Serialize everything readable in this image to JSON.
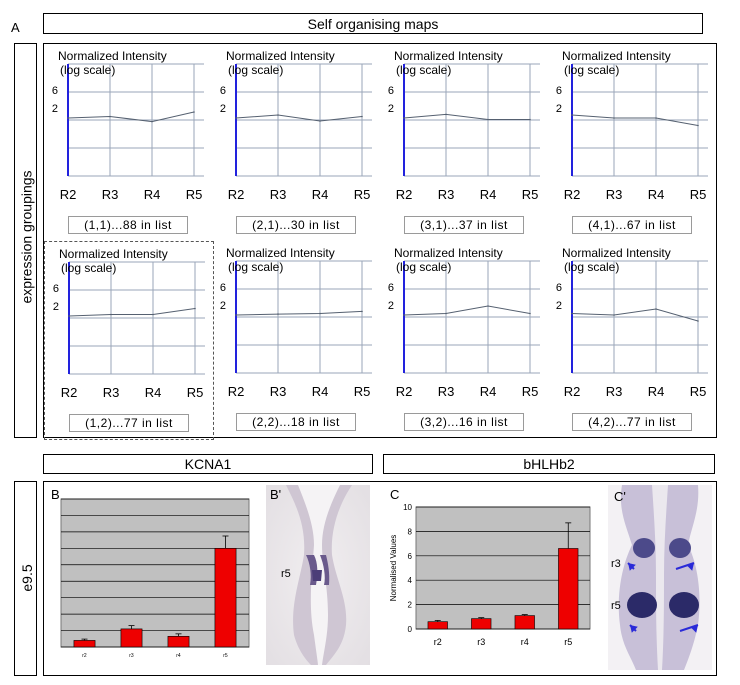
{
  "panel_a": {
    "letter": "A",
    "title": "Self organising maps",
    "side_label": "expression groupings"
  },
  "som_common": {
    "y_title_1": "Normalized Intensity",
    "y_title_2": "(log scale)",
    "y_ticks": [
      "6",
      "2"
    ],
    "x_categories": [
      "R2",
      "R3",
      "R4",
      "R5"
    ]
  },
  "panel_e95": {
    "side_label": "e9.5",
    "kcna1_title": "KCNA1",
    "bhlhb2_title": "bHLHb2"
  },
  "photo_b": {
    "letter": "B'",
    "labels": [
      "r5"
    ]
  },
  "photo_c": {
    "letter": "C'",
    "labels": [
      "r3",
      "r5"
    ],
    "arrow_color": "#2a2ad8"
  },
  "chart_data": [
    {
      "type": "line",
      "id": "som-1-1",
      "label": "(1,1)...88 in list",
      "x": [
        "R2",
        "R3",
        "R4",
        "R5"
      ],
      "y": [
        0.0,
        0.05,
        -0.12,
        0.2
      ]
    },
    {
      "type": "line",
      "id": "som-2-1",
      "label": "(2,1)...30 in list",
      "x": [
        "R2",
        "R3",
        "R4",
        "R5"
      ],
      "y": [
        0.0,
        0.1,
        -0.1,
        0.05
      ]
    },
    {
      "type": "line",
      "id": "som-3-1",
      "label": "(3,1)...37 in list",
      "x": [
        "R2",
        "R3",
        "R4",
        "R5"
      ],
      "y": [
        0.0,
        0.12,
        -0.05,
        -0.05
      ]
    },
    {
      "type": "line",
      "id": "som-4-1",
      "label": "(4,1)...67 in list",
      "x": [
        "R2",
        "R3",
        "R4",
        "R5"
      ],
      "y": [
        0.1,
        0.0,
        0.0,
        -0.25
      ]
    },
    {
      "type": "line",
      "id": "som-1-2",
      "label": "(1,2)...77 in list",
      "x": [
        "R2",
        "R3",
        "R4",
        "R5"
      ],
      "y": [
        0.0,
        0.05,
        0.05,
        0.25
      ]
    },
    {
      "type": "line",
      "id": "som-2-2",
      "label": "(2,2)...18 in list",
      "x": [
        "R2",
        "R3",
        "R4",
        "R5"
      ],
      "y": [
        0.0,
        0.03,
        0.05,
        0.12
      ]
    },
    {
      "type": "line",
      "id": "som-3-2",
      "label": "(3,2)...16 in list",
      "x": [
        "R2",
        "R3",
        "R4",
        "R5"
      ],
      "y": [
        0.0,
        0.05,
        0.3,
        0.05
      ]
    },
    {
      "type": "line",
      "id": "som-4-2",
      "label": "(4,2)...77 in list",
      "x": [
        "R2",
        "R3",
        "R4",
        "R5"
      ],
      "y": [
        0.05,
        0.0,
        0.2,
        -0.2
      ]
    },
    {
      "type": "bar",
      "id": "kcna1-bar",
      "letter": "B",
      "categories": [
        "r2",
        "r3",
        "r4",
        "r5"
      ],
      "values": [
        0.4,
        1.1,
        0.65,
        6.0
      ],
      "errors": [
        0.08,
        0.2,
        0.15,
        0.75
      ],
      "ylim": [
        0,
        9
      ],
      "bar_color": "#ee0000",
      "background": "#c0c0c0",
      "ylabel": "",
      "yticks": []
    },
    {
      "type": "bar",
      "id": "bhlhb2-bar",
      "letter": "C",
      "categories": [
        "r2",
        "r3",
        "r4",
        "r5"
      ],
      "values": [
        0.6,
        0.85,
        1.1,
        6.6
      ],
      "errors": [
        0.1,
        0.08,
        0.08,
        2.1
      ],
      "ylim": [
        0,
        10
      ],
      "bar_color": "#ee0000",
      "background": "#c0c0c0",
      "ylabel": "Normalised Values",
      "yticks": [
        "0",
        "2",
        "4",
        "6",
        "8",
        "10"
      ]
    }
  ]
}
